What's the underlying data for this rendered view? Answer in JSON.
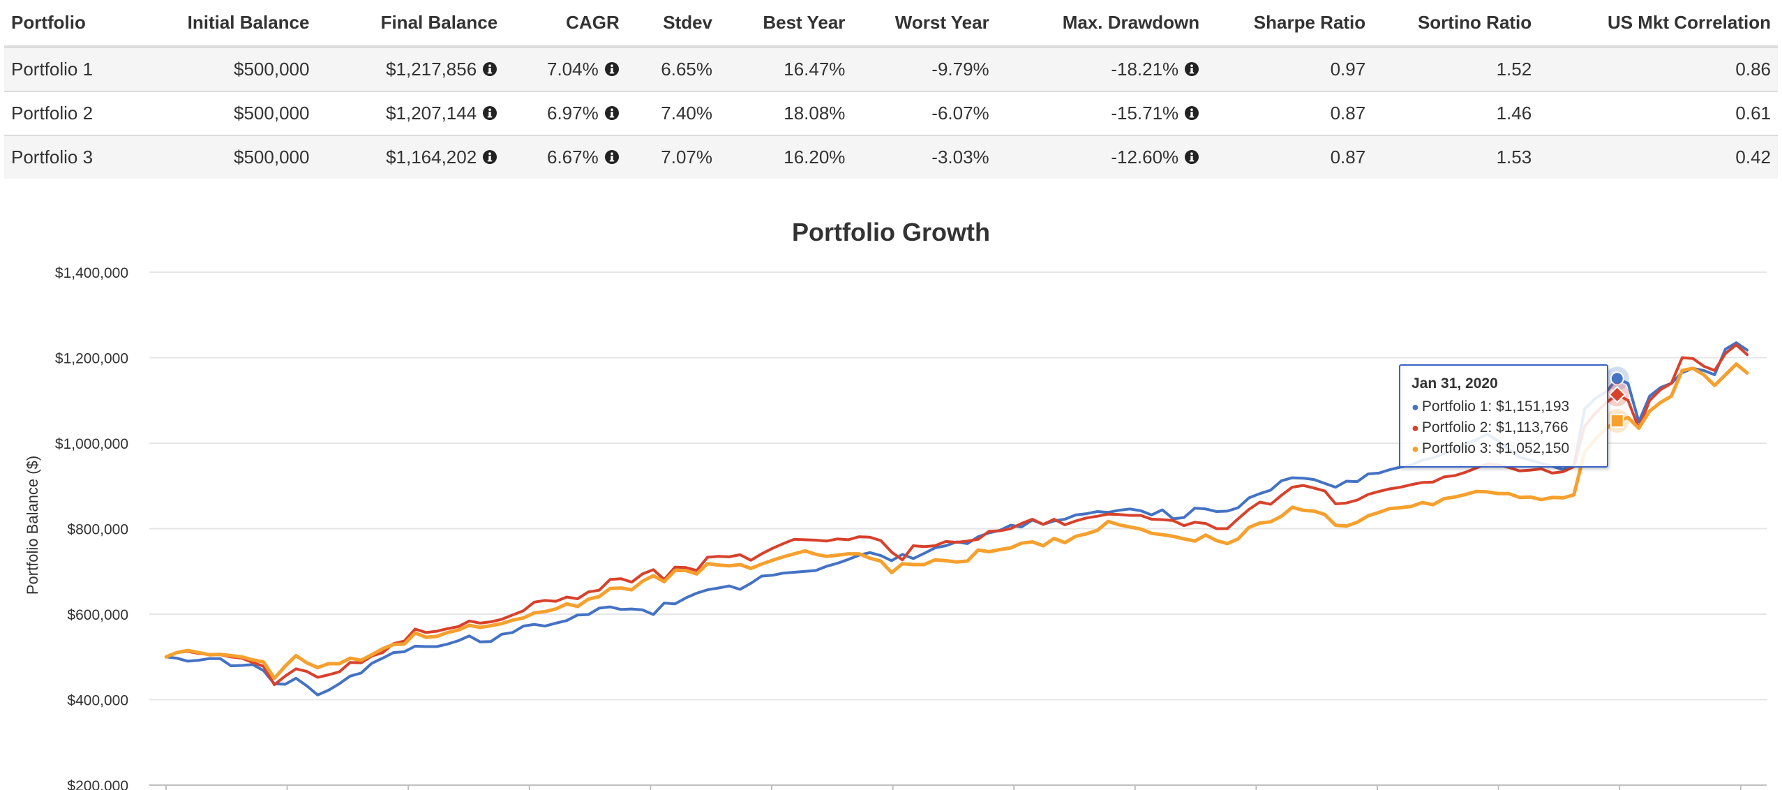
{
  "stats_table": {
    "headers": [
      "Portfolio",
      "Initial Balance",
      "Final Balance",
      "CAGR",
      "Stdev",
      "Best Year",
      "Worst Year",
      "Max. Drawdown",
      "Sharpe Ratio",
      "Sortino Ratio",
      "US Mkt Correlation"
    ],
    "rows": [
      [
        "Portfolio 1",
        "$500,000",
        "$1,217,856",
        "7.04%",
        "6.65%",
        "16.47%",
        "-9.79%",
        "-18.21%",
        "0.97",
        "1.52",
        "0.86"
      ],
      [
        "Portfolio 2",
        "$500,000",
        "$1,207,144",
        "6.97%",
        "7.40%",
        "18.08%",
        "-6.07%",
        "-15.71%",
        "0.87",
        "1.46",
        "0.61"
      ],
      [
        "Portfolio 3",
        "$500,000",
        "$1,164,202",
        "6.67%",
        "7.07%",
        "16.20%",
        "-3.03%",
        "-12.60%",
        "0.87",
        "1.53",
        "0.42"
      ]
    ],
    "info_icon_columns": [
      2,
      3,
      7
    ]
  },
  "chart_data": {
    "type": "line",
    "title": "Portfolio Growth",
    "xlabel": "",
    "ylabel": "Portfolio Balance ($)",
    "ylim": [
      200000,
      1400000
    ],
    "yticks": [
      "$200,000",
      "$400,000",
      "$600,000",
      "$800,000",
      "$1,000,000",
      "$1,200,000",
      "$1,400,000"
    ],
    "grid": true,
    "series": [
      {
        "name": "Portfolio 1",
        "color": "#4472c4",
        "marker": "circle",
        "values": [
          500000,
          497000,
          490000,
          492000,
          496000,
          496000,
          479000,
          480000,
          482000,
          468000,
          437000,
          436000,
          450000,
          432000,
          411000,
          422000,
          437000,
          455000,
          462000,
          485000,
          497000,
          510000,
          512000,
          525000,
          524000,
          524000,
          530000,
          538000,
          549000,
          535000,
          536000,
          553000,
          557000,
          572000,
          576000,
          572000,
          579000,
          585000,
          598000,
          599000,
          614000,
          617000,
          611000,
          612000,
          610000,
          599000,
          626000,
          624000,
          638000,
          649000,
          657000,
          661000,
          666000,
          658000,
          672000,
          689000,
          691000,
          696000,
          698000,
          700000,
          702000,
          712000,
          719000,
          728000,
          738000,
          744000,
          737000,
          725000,
          740000,
          730000,
          742000,
          755000,
          760000,
          769000,
          765000,
          781000,
          790000,
          796000,
          808000,
          804000,
          820000,
          810000,
          818000,
          822000,
          832000,
          835000,
          840000,
          838000,
          843000,
          846000,
          842000,
          832000,
          844000,
          823000,
          826000,
          848000,
          846000,
          840000,
          841000,
          849000,
          872000,
          882000,
          890000,
          912000,
          919000,
          918000,
          915000,
          906000,
          897000,
          911000,
          910000,
          928000,
          930000,
          938000,
          944000,
          949000,
          960000,
          966000,
          975000,
          985000,
          999000,
          1008000,
          1021000,
          1005000,
          985000,
          967000,
          960000,
          953000,
          946000,
          938000,
          948000,
          1080000,
          1105000,
          1120000,
          1151193,
          1140000,
          1050000,
          1110000,
          1130000,
          1140000,
          1165000,
          1175000,
          1170000,
          1160000,
          1220000,
          1235000,
          1217856
        ]
      },
      {
        "name": "Portfolio 2",
        "color": "#d8412b",
        "marker": "diamond",
        "values": [
          500000,
          510000,
          513000,
          508000,
          506000,
          505000,
          500000,
          497000,
          487000,
          478000,
          435000,
          455000,
          472000,
          466000,
          452000,
          458000,
          465000,
          487000,
          486000,
          502000,
          510000,
          531000,
          537000,
          565000,
          557000,
          560000,
          566000,
          571000,
          584000,
          579000,
          582000,
          588000,
          598000,
          608000,
          628000,
          632000,
          630000,
          640000,
          636000,
          652000,
          656000,
          681000,
          683000,
          675000,
          694000,
          704000,
          681000,
          710000,
          709000,
          702000,
          733000,
          735000,
          734000,
          739000,
          726000,
          741000,
          754000,
          765000,
          775000,
          774000,
          773000,
          771000,
          776000,
          774000,
          781000,
          780000,
          772000,
          745000,
          727000,
          760000,
          758000,
          760000,
          770000,
          768000,
          771000,
          775000,
          794000,
          795000,
          800000,
          812000,
          822000,
          810000,
          822000,
          809000,
          818000,
          825000,
          829000,
          834000,
          833000,
          831000,
          831000,
          822000,
          821000,
          819000,
          807000,
          815000,
          812000,
          800000,
          800000,
          823000,
          845000,
          862000,
          857000,
          878000,
          897000,
          901000,
          895000,
          888000,
          858000,
          860000,
          867000,
          880000,
          887000,
          893000,
          897000,
          903000,
          908000,
          909000,
          921000,
          924000,
          932000,
          942000,
          951000,
          949000,
          943000,
          935000,
          937000,
          940000,
          930000,
          933000,
          945000,
          1040000,
          1070000,
          1095000,
          1113766,
          1100000,
          1035000,
          1100000,
          1125000,
          1140000,
          1200000,
          1198000,
          1180000,
          1170000,
          1210000,
          1230000,
          1207144
        ]
      },
      {
        "name": "Portfolio 3",
        "color": "#f6a02e",
        "marker": "square",
        "values": [
          500000,
          510000,
          515000,
          510000,
          505000,
          506000,
          503000,
          500000,
          493000,
          488000,
          450000,
          478000,
          503000,
          486000,
          475000,
          484000,
          484000,
          497000,
          492000,
          505000,
          519000,
          529000,
          530000,
          556000,
          546000,
          548000,
          557000,
          563000,
          574000,
          569000,
          573000,
          578000,
          586000,
          591000,
          603000,
          606000,
          612000,
          624000,
          618000,
          635000,
          641000,
          660000,
          661000,
          657000,
          677000,
          690000,
          676000,
          702000,
          702000,
          694000,
          718000,
          715000,
          713000,
          716000,
          707000,
          717000,
          726000,
          734000,
          741000,
          748000,
          740000,
          735000,
          738000,
          741000,
          741000,
          731000,
          724000,
          697000,
          718000,
          716000,
          716000,
          727000,
          725000,
          722000,
          724000,
          750000,
          746000,
          751000,
          755000,
          766000,
          769000,
          760000,
          777000,
          767000,
          782000,
          788000,
          796000,
          817000,
          809000,
          804000,
          799000,
          789000,
          786000,
          782000,
          776000,
          771000,
          785000,
          772000,
          765000,
          776000,
          803000,
          813000,
          816000,
          829000,
          850000,
          843000,
          841000,
          833000,
          808000,
          806000,
          815000,
          830000,
          838000,
          847000,
          849000,
          852000,
          861000,
          856000,
          870000,
          874000,
          880000,
          887000,
          886000,
          882000,
          882000,
          873000,
          874000,
          868000,
          873000,
          872000,
          879000,
          980000,
          1010000,
          1035000,
          1052150,
          1060000,
          1035000,
          1075000,
          1095000,
          1110000,
          1170000,
          1175000,
          1160000,
          1135000,
          1160000,
          1185000,
          1164202
        ]
      }
    ],
    "tooltip": {
      "date": "Jan 31, 2020",
      "rows": [
        {
          "text": "Portfolio 1: $1,151,193",
          "color": "#4472c4"
        },
        {
          "text": "Portfolio 2: $1,113,766",
          "color": "#d8412b"
        },
        {
          "text": "Portfolio 3: $1,052,150",
          "color": "#f6a02e"
        }
      ],
      "hover_index": 134
    }
  }
}
